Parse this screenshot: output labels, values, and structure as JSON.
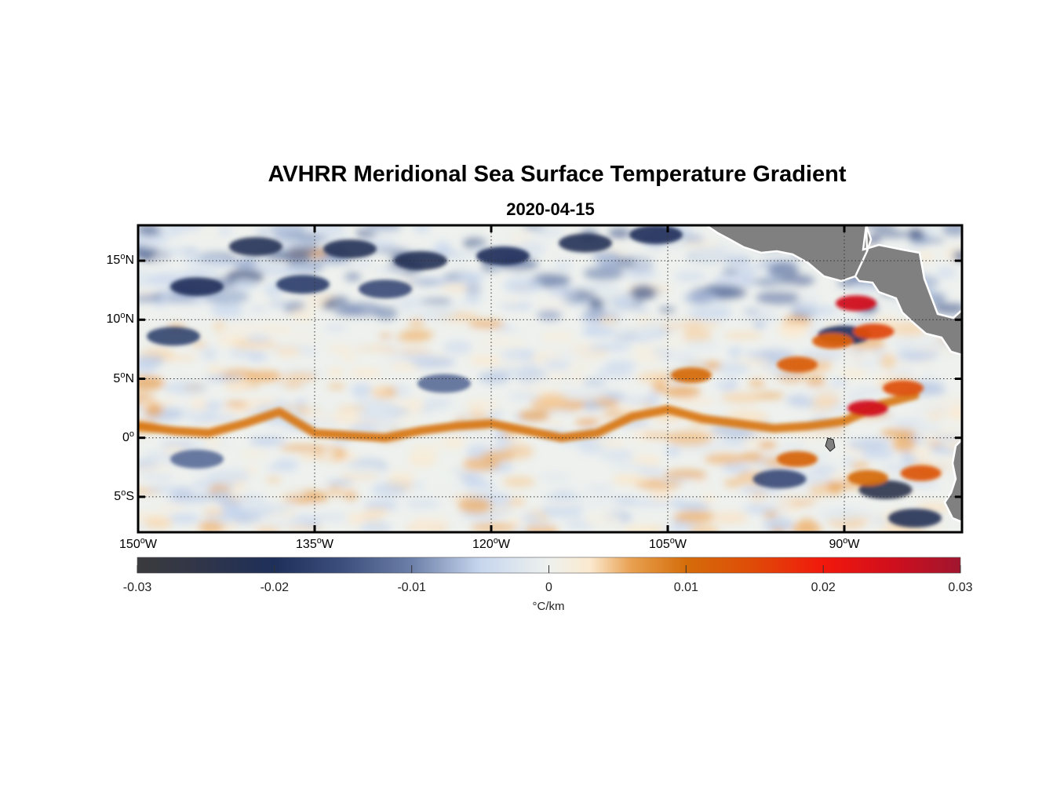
{
  "title": "AVHRR Meridional Sea Surface Temperature Gradient",
  "subtitle": "2020-04-15",
  "map": {
    "extent": {
      "lon_min": -150,
      "lon_max": -80,
      "lat_min": -8,
      "lat_max": 18
    },
    "lat_ticks": [
      {
        "deg": "15",
        "sup": "o",
        "hem": "N",
        "lat": 15
      },
      {
        "deg": "10",
        "sup": "o",
        "hem": "N",
        "lat": 10
      },
      {
        "deg": "5",
        "sup": "o",
        "hem": "N",
        "lat": 5
      },
      {
        "deg": "0",
        "sup": "o",
        "hem": "",
        "lat": 0
      },
      {
        "deg": "5",
        "sup": "o",
        "hem": "S",
        "lat": -5
      }
    ],
    "lon_ticks": [
      {
        "deg": "150",
        "sup": "o",
        "hem": "W",
        "lon": -150
      },
      {
        "deg": "135",
        "sup": "o",
        "hem": "W",
        "lon": -135
      },
      {
        "deg": "120",
        "sup": "o",
        "hem": "W",
        "lon": -120
      },
      {
        "deg": "105",
        "sup": "o",
        "hem": "W",
        "lon": -105
      },
      {
        "deg": "90",
        "sup": "o",
        "hem": "W",
        "lon": -90
      }
    ],
    "grid": true,
    "land_color": "#808080",
    "features": {
      "equatorial_positive_band": [
        [
          -150,
          1.0
        ],
        [
          -147,
          0.6
        ],
        [
          -144,
          0.4
        ],
        [
          -141,
          1.2
        ],
        [
          -138,
          2.2
        ],
        [
          -135,
          0.4
        ],
        [
          -132,
          0.2
        ],
        [
          -129,
          0.0
        ],
        [
          -126,
          0.6
        ],
        [
          -123,
          1.0
        ],
        [
          -120,
          1.2
        ],
        [
          -117,
          0.6
        ],
        [
          -114,
          0.0
        ],
        [
          -111,
          0.4
        ],
        [
          -108,
          1.8
        ],
        [
          -105,
          2.4
        ],
        [
          -102,
          1.6
        ],
        [
          -99,
          1.2
        ],
        [
          -96,
          0.8
        ],
        [
          -93,
          1.0
        ],
        [
          -90,
          1.4
        ],
        [
          -87,
          2.8
        ],
        [
          -84,
          3.6
        ]
      ],
      "positive_patches": [
        {
          "lon": -89,
          "lat": 11.4,
          "value": 0.025
        },
        {
          "lon": -88,
          "lat": 2.5,
          "value": 0.025
        },
        {
          "lon": -91,
          "lat": 8.2,
          "value": 0.012
        },
        {
          "lon": -94,
          "lat": 6.2,
          "value": 0.012
        },
        {
          "lon": -87.5,
          "lat": 9.0,
          "value": 0.015
        },
        {
          "lon": -85,
          "lat": 4.2,
          "value": 0.014
        },
        {
          "lon": -94,
          "lat": -1.8,
          "value": 0.011
        },
        {
          "lon": -103,
          "lat": 5.3,
          "value": 0.01
        },
        {
          "lon": -88,
          "lat": -3.4,
          "value": 0.01
        },
        {
          "lon": -83.5,
          "lat": -3.0,
          "value": 0.013
        }
      ],
      "negative_patches": [
        {
          "lon": -140,
          "lat": 16.2,
          "value": -0.022
        },
        {
          "lon": -132,
          "lat": 16.0,
          "value": -0.022
        },
        {
          "lon": -126,
          "lat": 15.0,
          "value": -0.022
        },
        {
          "lon": -119,
          "lat": 15.4,
          "value": -0.02
        },
        {
          "lon": -112,
          "lat": 16.5,
          "value": -0.022
        },
        {
          "lon": -106,
          "lat": 17.2,
          "value": -0.02
        },
        {
          "lon": -145,
          "lat": 12.8,
          "value": -0.02
        },
        {
          "lon": -136,
          "lat": 13.0,
          "value": -0.018
        },
        {
          "lon": -129,
          "lat": 12.6,
          "value": -0.016
        },
        {
          "lon": -147,
          "lat": 8.6,
          "value": -0.017
        },
        {
          "lon": -90,
          "lat": 8.7,
          "value": -0.02
        },
        {
          "lon": -86.5,
          "lat": -4.4,
          "value": -0.024
        },
        {
          "lon": -84,
          "lat": -6.8,
          "value": -0.022
        },
        {
          "lon": -95.5,
          "lat": -3.5,
          "value": -0.016
        },
        {
          "lon": -145,
          "lat": -1.8,
          "value": -0.012
        },
        {
          "lon": -124,
          "lat": 4.6,
          "value": -0.012
        }
      ]
    }
  },
  "colorbar": {
    "ticks": [
      "-0.03",
      "-0.02",
      "-0.01",
      "0",
      "0.01",
      "0.02",
      "0.03"
    ],
    "min": -0.03,
    "max": 0.03,
    "units": "°C/km",
    "colors": [
      {
        "v": -0.03,
        "c": "#3b3b3d"
      },
      {
        "v": -0.025,
        "c": "#2f354a"
      },
      {
        "v": -0.02,
        "c": "#1e2f5a"
      },
      {
        "v": -0.015,
        "c": "#3d4f7d"
      },
      {
        "v": -0.01,
        "c": "#6c7fa8"
      },
      {
        "v": -0.005,
        "c": "#c7d6ee"
      },
      {
        "v": 0,
        "c": "#eef1ee"
      },
      {
        "v": 0.003,
        "c": "#fbe9cf"
      },
      {
        "v": 0.006,
        "c": "#e8a050"
      },
      {
        "v": 0.01,
        "c": "#d56d0a"
      },
      {
        "v": 0.015,
        "c": "#df4a08"
      },
      {
        "v": 0.02,
        "c": "#f2180c"
      },
      {
        "v": 0.025,
        "c": "#d00f1d"
      },
      {
        "v": 0.03,
        "c": "#a0162f"
      }
    ]
  }
}
